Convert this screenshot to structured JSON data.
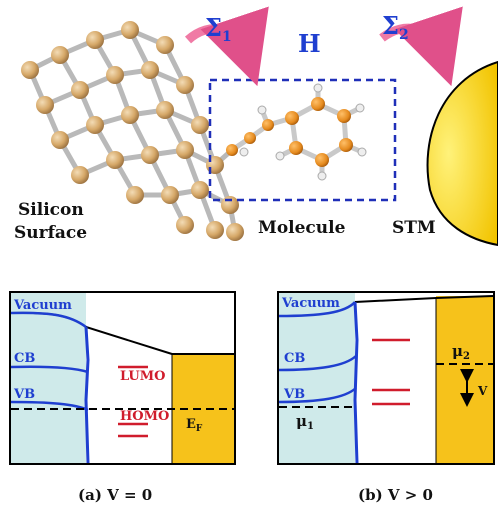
{
  "top": {
    "sigma1": "Σ",
    "sigma1_sub": "1",
    "sigma2": "Σ",
    "sigma2_sub": "2",
    "hamiltonian": "H",
    "silicon_label_line1": "Silicon",
    "silicon_label_line2": "Surface",
    "molecule_label": "Molecule",
    "stm_label": "STM"
  },
  "panel_a": {
    "vacuum": "Vacuum",
    "cb": "CB",
    "vb": "VB",
    "lumo": "LUMO",
    "homo": "HOMO",
    "ef": "E",
    "ef_sub": "F",
    "caption": "(a) V = 0"
  },
  "panel_b": {
    "vacuum": "Vacuum",
    "cb": "CB",
    "vb": "VB",
    "mu1": "μ",
    "mu1_sub": "1",
    "mu2": "μ",
    "mu2_sub": "2",
    "v": "V",
    "caption": "(b) V > 0"
  },
  "colors": {
    "silicon_fill": "#cfeaea",
    "stm_fill": "#f6c21b",
    "blue_line": "#1f3fd0",
    "red_level": "#d01c2c",
    "atom": "#d9b27c",
    "orange_atom": "#e58a1e",
    "arrow_pink": "#f07aa5"
  }
}
